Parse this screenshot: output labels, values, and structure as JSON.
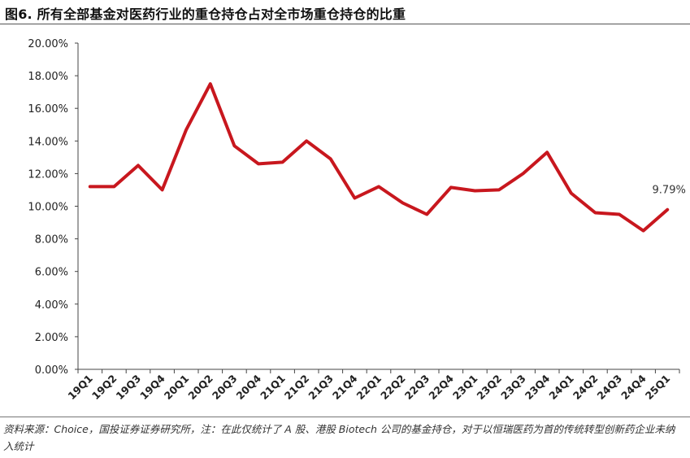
{
  "title": "图6. 所有全部基金对医药行业的重仓持仓占对全市场重仓持仓的比重",
  "source": "资料来源：Choice，国投证券证券研究所，注：在此仅统计了 A 股、港股 Biotech 公司的基金持仓，对于以恒瑞医药为首的传统转型创新药企业未纳入统计",
  "chart_data": {
    "type": "line",
    "title": "图6. 所有全部基金对医药行业的重仓持仓占对全市场重仓持仓的比重",
    "xlabel": "",
    "ylabel": "",
    "categories": [
      "19Q1",
      "19Q2",
      "19Q3",
      "19Q4",
      "20Q1",
      "20Q2",
      "20Q3",
      "20Q4",
      "21Q1",
      "21Q2",
      "21Q3",
      "21Q4",
      "22Q1",
      "22Q2",
      "22Q3",
      "22Q4",
      "23Q1",
      "23Q2",
      "23Q3",
      "23Q4",
      "24Q1",
      "24Q2",
      "24Q3",
      "24Q4",
      "25Q1"
    ],
    "series": [
      {
        "name": "",
        "color": "#C8171E",
        "values": [
          11.2,
          11.2,
          12.5,
          11.0,
          14.7,
          17.5,
          13.7,
          12.6,
          12.7,
          14.0,
          12.9,
          10.5,
          11.2,
          10.2,
          9.5,
          11.15,
          10.95,
          11.0,
          12.0,
          13.3,
          10.8,
          9.6,
          9.5,
          8.5,
          9.79
        ]
      }
    ],
    "ylim": [
      0,
      20
    ],
    "yticks": [
      "0.00%",
      "2.00%",
      "4.00%",
      "6.00%",
      "8.00%",
      "10.00%",
      "12.00%",
      "14.00%",
      "16.00%",
      "18.00%",
      "20.00%"
    ],
    "annotations": [
      {
        "category": "25Q1",
        "text": "9.79%"
      }
    ],
    "grid": false,
    "legend": "none"
  }
}
